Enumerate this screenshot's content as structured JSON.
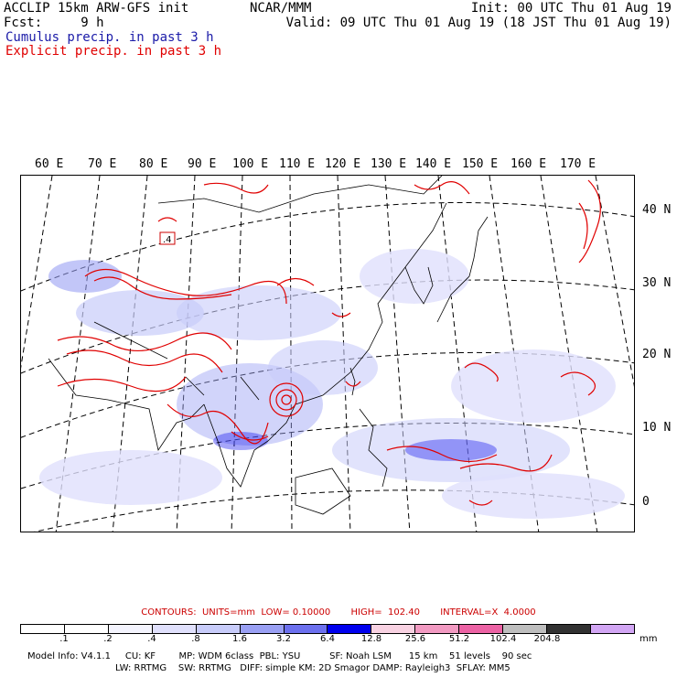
{
  "header": {
    "left_line1": "ACCLIP 15km ARW-GFS init",
    "left_line2": "Fcst:     9 h",
    "center": "NCAR/MMM",
    "right_line1": "Init: 00 UTC Thu 01 Aug 19",
    "right_line2": "Valid: 09 UTC Thu 01 Aug 19 (18 JST Thu 01 Aug 19)",
    "legend_cumulus": "Cumulus precip. in past 3 h",
    "legend_explicit": "Explicit precip. in past 3 h"
  },
  "colors": {
    "cumulus": "#1a1aa8",
    "explicit": "#e00000",
    "map_lines": "#000000"
  },
  "longitude_labels": [
    "60 E",
    "70 E",
    "80 E",
    "90 E",
    "100 E",
    "110 E",
    "120 E",
    "130 E",
    "140 E",
    "150 E",
    "160 E",
    "170 E"
  ],
  "latitude_labels": [
    "40 N",
    "30 N",
    "20 N",
    "10 N",
    "0"
  ],
  "marker": {
    "label": ".4"
  },
  "contours": {
    "text": "CONTOURS:  UNITS=mm  LOW= 0.10000       HIGH=  102.40       INTERVAL=X  4.0000"
  },
  "colorbar": {
    "labels": [
      ".1",
      ".2",
      ".4",
      ".8",
      "1.6",
      "3.2",
      "6.4",
      "12.8",
      "25.6",
      "51.2",
      "102.4",
      "204.8"
    ],
    "colors": [
      "#ffffff",
      "#ffffff",
      "#f4f4fe",
      "#e0e0fc",
      "#c8ccfa",
      "#9aa0f4",
      "#6c70ee",
      "#0000ee",
      "#f8d2e2",
      "#f29ac2",
      "#ec62a4",
      "#bebebe",
      "#323232",
      "#d2a6f4"
    ],
    "unit": "mm"
  },
  "footer": {
    "line1": "Model Info: V4.1.1     CU: KF        MP: WDM 6class  PBL: YSU          SF: Noah LSM      15 km    51 levels    90 sec",
    "line2": "LW: RRTMG    SW: RRTMG   DIFF: simple KM: 2D Smagor DAMP: Rayleigh3  SFLAY: MM5"
  }
}
